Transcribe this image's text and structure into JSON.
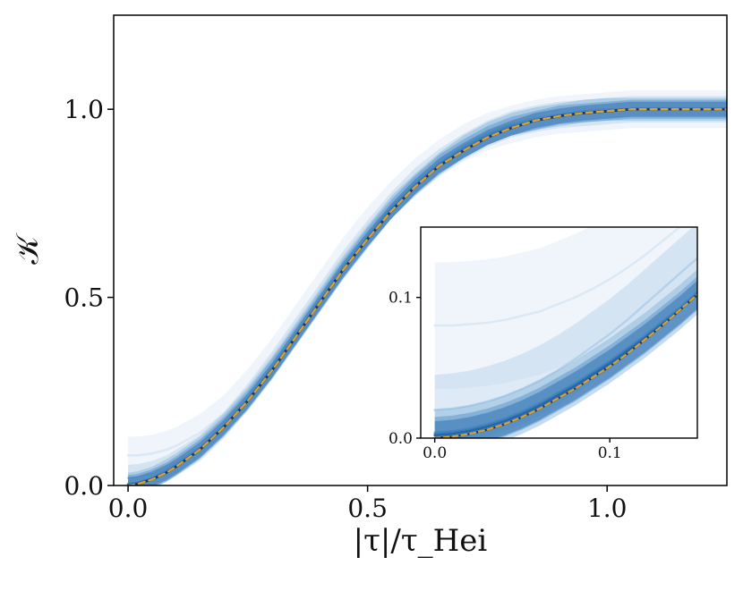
{
  "chart_data": [
    {
      "type": "line",
      "role": "main",
      "title": "",
      "xlabel": "|τ|/τ_Hei",
      "ylabel": "𝒦",
      "xlim": [
        -0.03,
        1.25
      ],
      "ylim": [
        0.0,
        1.25
      ],
      "xticks": [
        0.0,
        0.5,
        1.0
      ],
      "xtick_labels": [
        "0.0",
        "0.5",
        "1.0"
      ],
      "yticks": [
        0.0,
        0.5,
        1.0
      ],
      "ytick_labels": [
        "0.0",
        "0.5",
        "1.0"
      ],
      "grid": false,
      "legend": false,
      "x": [
        0.0,
        0.02,
        0.05,
        0.08,
        0.1,
        0.15,
        0.2,
        0.25,
        0.3,
        0.35,
        0.4,
        0.45,
        0.5,
        0.55,
        0.6,
        0.65,
        0.7,
        0.75,
        0.8,
        0.85,
        0.9,
        0.95,
        1.0,
        1.05,
        1.1,
        1.15,
        1.2,
        1.25
      ],
      "series": [
        {
          "color": "#dbe8f5",
          "band": 0.05,
          "values": [
            0.08,
            0.08,
            0.085,
            0.095,
            0.105,
            0.14,
            0.19,
            0.26,
            0.34,
            0.43,
            0.52,
            0.61,
            0.69,
            0.76,
            0.82,
            0.87,
            0.91,
            0.94,
            0.96,
            0.975,
            0.985,
            0.99,
            0.995,
            1.0,
            1.0,
            1.0,
            1.0,
            1.0
          ]
        },
        {
          "color": "#b5d1ea",
          "band": 0.035,
          "values": [
            0.02,
            0.022,
            0.03,
            0.045,
            0.06,
            0.1,
            0.16,
            0.235,
            0.32,
            0.41,
            0.5,
            0.59,
            0.67,
            0.745,
            0.81,
            0.86,
            0.9,
            0.935,
            0.96,
            0.975,
            0.985,
            0.99,
            0.995,
            1.0,
            1.0,
            1.0,
            1.0,
            1.0
          ]
        },
        {
          "color": "#7fb2d9",
          "band": 0.03,
          "values": [
            0.004,
            0.008,
            0.02,
            0.04,
            0.055,
            0.1,
            0.16,
            0.23,
            0.31,
            0.4,
            0.49,
            0.58,
            0.66,
            0.74,
            0.8,
            0.855,
            0.9,
            0.935,
            0.96,
            0.975,
            0.985,
            0.995,
            1.0,
            1.0,
            1.0,
            1.0,
            1.0,
            1.0
          ]
        },
        {
          "color": "#4f8fc6",
          "band": 0.025,
          "values": [
            0.003,
            0.006,
            0.018,
            0.036,
            0.052,
            0.097,
            0.157,
            0.228,
            0.31,
            0.398,
            0.488,
            0.577,
            0.66,
            0.735,
            0.8,
            0.855,
            0.895,
            0.93,
            0.955,
            0.97,
            0.985,
            0.99,
            0.995,
            1.0,
            1.0,
            1.0,
            1.0,
            1.0
          ]
        },
        {
          "color": "#2466a8",
          "band": 0.02,
          "values": [
            0.002,
            0.005,
            0.017,
            0.035,
            0.05,
            0.095,
            0.155,
            0.225,
            0.305,
            0.395,
            0.485,
            0.575,
            0.655,
            0.73,
            0.795,
            0.85,
            0.89,
            0.925,
            0.95,
            0.97,
            0.982,
            0.99,
            0.995,
            1.0,
            1.0,
            1.0,
            1.0,
            1.0
          ]
        },
        {
          "color": "#0b3a73",
          "band": 0.0,
          "values": [
            0.0,
            0.004,
            0.016,
            0.034,
            0.05,
            0.095,
            0.155,
            0.225,
            0.305,
            0.395,
            0.485,
            0.575,
            0.655,
            0.73,
            0.795,
            0.85,
            0.89,
            0.925,
            0.95,
            0.97,
            0.982,
            0.99,
            0.995,
            1.0,
            1.0,
            1.0,
            1.0,
            1.0
          ]
        },
        {
          "color": "#e0a126",
          "style": "dashed",
          "band": 0.0,
          "values": [
            0.0,
            0.004,
            0.016,
            0.034,
            0.05,
            0.095,
            0.155,
            0.225,
            0.305,
            0.395,
            0.485,
            0.575,
            0.655,
            0.73,
            0.795,
            0.85,
            0.89,
            0.925,
            0.95,
            0.97,
            0.982,
            0.99,
            0.995,
            1.0,
            1.0,
            1.0,
            1.0,
            1.0
          ]
        }
      ]
    },
    {
      "type": "line",
      "role": "inset",
      "title": "",
      "xlim": [
        -0.008,
        0.15
      ],
      "ylim": [
        0.0,
        0.15
      ],
      "xticks": [
        0.0,
        0.1
      ],
      "xtick_labels": [
        "0.0",
        "0.1"
      ],
      "yticks": [
        0.0,
        0.1
      ],
      "ytick_labels": [
        "0.0",
        "0.1"
      ],
      "grid": false,
      "legend": false,
      "x": [
        0.0,
        0.01,
        0.02,
        0.03,
        0.04,
        0.05,
        0.06,
        0.07,
        0.08,
        0.09,
        0.1,
        0.11,
        0.12,
        0.13,
        0.14,
        0.15
      ],
      "series": [
        {
          "color": "#dbe8f5",
          "band": 0.045,
          "values": [
            0.08,
            0.08,
            0.081,
            0.082,
            0.084,
            0.087,
            0.09,
            0.095,
            0.1,
            0.106,
            0.113,
            0.121,
            0.13,
            0.14,
            0.15,
            0.16
          ]
        },
        {
          "color": "#b5d1ea",
          "band": 0.025,
          "values": [
            0.02,
            0.021,
            0.023,
            0.026,
            0.03,
            0.035,
            0.041,
            0.048,
            0.056,
            0.065,
            0.074,
            0.084,
            0.095,
            0.106,
            0.117,
            0.128
          ]
        },
        {
          "color": "#7fb2d9",
          "band": 0.016,
          "values": [
            0.004,
            0.005,
            0.007,
            0.01,
            0.014,
            0.019,
            0.025,
            0.032,
            0.039,
            0.047,
            0.055,
            0.064,
            0.073,
            0.083,
            0.093,
            0.104
          ]
        },
        {
          "color": "#4f8fc6",
          "band": 0.012,
          "values": [
            0.003,
            0.004,
            0.006,
            0.009,
            0.013,
            0.018,
            0.024,
            0.031,
            0.038,
            0.046,
            0.054,
            0.063,
            0.072,
            0.082,
            0.092,
            0.103
          ]
        },
        {
          "color": "#2466a8",
          "band": 0.01,
          "values": [
            0.002,
            0.003,
            0.005,
            0.008,
            0.012,
            0.017,
            0.023,
            0.03,
            0.037,
            0.045,
            0.053,
            0.062,
            0.071,
            0.081,
            0.091,
            0.102
          ]
        },
        {
          "color": "#0b3a73",
          "band": 0.0,
          "values": [
            0.0,
            0.001,
            0.003,
            0.006,
            0.01,
            0.015,
            0.021,
            0.028,
            0.035,
            0.043,
            0.051,
            0.06,
            0.07,
            0.08,
            0.091,
            0.102
          ]
        },
        {
          "color": "#e0a126",
          "style": "dashed",
          "band": 0.0,
          "values": [
            0.0,
            0.001,
            0.003,
            0.006,
            0.01,
            0.015,
            0.021,
            0.028,
            0.035,
            0.043,
            0.051,
            0.06,
            0.07,
            0.08,
            0.091,
            0.102
          ]
        }
      ]
    }
  ]
}
